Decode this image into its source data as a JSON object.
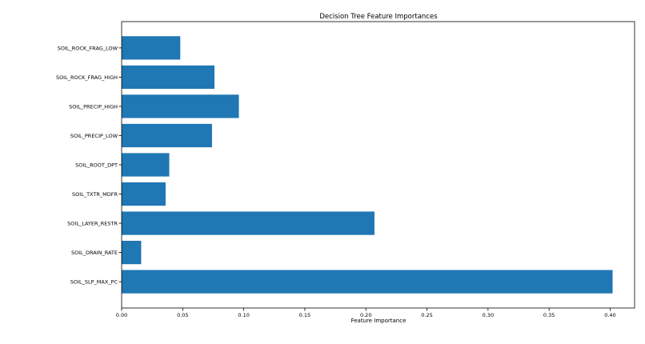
{
  "chart_data": {
    "type": "bar",
    "orientation": "horizontal",
    "title": "Decision Tree Feature Importances",
    "xlabel": "Feature Importance",
    "ylabel": "",
    "categories": [
      "SOIL_SLP_MAX_PC",
      "SOIL_DRAIN_RATE",
      "SOIL_LAYER_RESTR",
      "SOIL_TXTR_MDFR",
      "SOIL_ROOT_DPT",
      "SOIL_PRECIP_LOW",
      "SOIL_PRECIP_HIGH",
      "SOIL_ROCK_FRAG_HIGH",
      "SOIL_ROCK_FRAG_LOW"
    ],
    "values": [
      0.402,
      0.016,
      0.207,
      0.036,
      0.039,
      0.074,
      0.096,
      0.076,
      0.048
    ],
    "xlim": [
      0.0,
      0.42
    ],
    "xticks": [
      0.0,
      0.05,
      0.1,
      0.15,
      0.2,
      0.25,
      0.3,
      0.35,
      0.4
    ],
    "xtick_labels": [
      "0.00",
      "0.05",
      "0.10",
      "0.15",
      "0.20",
      "0.25",
      "0.30",
      "0.35",
      "0.40"
    ],
    "grid": false,
    "legend": false,
    "bar_color": "#1f77b4"
  }
}
